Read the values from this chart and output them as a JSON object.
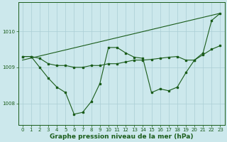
{
  "background_color": "#cce8ec",
  "grid_color": "#aacdd4",
  "line_color": "#1a5c1a",
  "xlabel": "Graphe pression niveau de la mer (hPa)",
  "xlabel_fontsize": 6.5,
  "xlabel_color": "#1a5c1a",
  "ylabel_ticks": [
    1008,
    1009,
    1010
  ],
  "xlim": [
    -0.5,
    23.5
  ],
  "ylim": [
    1007.4,
    1010.8
  ],
  "line1_x": [
    0,
    1,
    2,
    3,
    4,
    5,
    6,
    7,
    8,
    9,
    10,
    11,
    12,
    13,
    14,
    15,
    16,
    17,
    18,
    19,
    20,
    21,
    22,
    23
  ],
  "line1_y": [
    1009.3,
    1009.3,
    1009.25,
    1009.1,
    1009.05,
    1009.05,
    1009.0,
    1009.0,
    1009.05,
    1009.05,
    1009.1,
    1009.1,
    1009.15,
    1009.2,
    1009.2,
    1009.22,
    1009.25,
    1009.28,
    1009.3,
    1009.2,
    1009.2,
    1009.35,
    1009.5,
    1009.6
  ],
  "line2_x": [
    0,
    23
  ],
  "line2_y": [
    1009.2,
    1010.5
  ],
  "line3_x": [
    0,
    1,
    2,
    3,
    4,
    5,
    6,
    7,
    8,
    9,
    10,
    11,
    12,
    13,
    14,
    15,
    16,
    17,
    18,
    19,
    20,
    21,
    22,
    23
  ],
  "line3_y": [
    1009.3,
    1009.3,
    1009.0,
    1008.7,
    1008.45,
    1008.3,
    1007.7,
    1007.75,
    1008.05,
    1008.55,
    1009.55,
    1009.55,
    1009.4,
    1009.28,
    1009.25,
    1008.3,
    1008.4,
    1008.35,
    1008.45,
    1008.85,
    1009.2,
    1009.4,
    1010.3,
    1010.5
  ],
  "xtick_labels": [
    "0",
    "1",
    "2",
    "3",
    "4",
    "5",
    "6",
    "7",
    "8",
    "9",
    "10",
    "11",
    "12",
    "13",
    "14",
    "15",
    "16",
    "17",
    "18",
    "19",
    "20",
    "21",
    "22",
    "23"
  ],
  "tick_fontsize": 5.0,
  "tick_color": "#1a5c1a",
  "marker_size": 2.0,
  "linewidth": 0.8
}
